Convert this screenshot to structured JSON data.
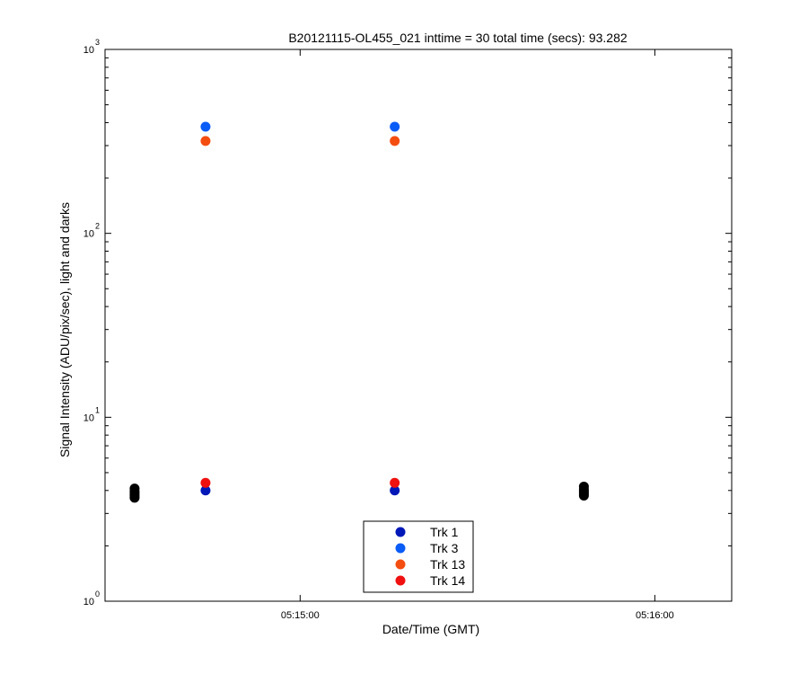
{
  "chart_data": {
    "type": "scatter",
    "title": "B20121115-OL455_021 inttime = 30 total time (secs): 93.282",
    "xlabel": "Date/Time (GMT)",
    "ylabel": "Signal Intensity (ADU/pix/sec), light and darks",
    "y_scale": "log",
    "ylim": [
      1,
      1000
    ],
    "xlim": [
      "05:14:27",
      "05:16:13"
    ],
    "x_tick_labels": [
      "05:15:00",
      "05:16:00"
    ],
    "y_tick_labels": [
      {
        "base": "10",
        "exp": "0"
      },
      {
        "base": "10",
        "exp": "1"
      },
      {
        "base": "10",
        "exp": "2"
      },
      {
        "base": "10",
        "exp": "3"
      }
    ],
    "legend_position": "bottom-center",
    "series": [
      {
        "name": "Trk 1",
        "color": "#0018b8",
        "points": [
          {
            "x": "05:14:44",
            "y": 4.0
          },
          {
            "x": "05:15:16",
            "y": 4.0
          }
        ]
      },
      {
        "name": "Trk 3",
        "color": "#0a5cf6",
        "points": [
          {
            "x": "05:14:44",
            "y": 380
          },
          {
            "x": "05:15:16",
            "y": 380
          }
        ]
      },
      {
        "name": "Trk 13",
        "color": "#f44d10",
        "points": [
          {
            "x": "05:14:44",
            "y": 318
          },
          {
            "x": "05:15:16",
            "y": 318
          }
        ]
      },
      {
        "name": "Trk 14",
        "color": "#f01010",
        "points": [
          {
            "x": "05:14:44",
            "y": 4.4
          },
          {
            "x": "05:15:16",
            "y": 4.4
          }
        ]
      }
    ],
    "dark_points": {
      "color": "#000000",
      "points": [
        {
          "x": "05:14:32",
          "y": 4.1
        },
        {
          "x": "05:14:32",
          "y": 3.95
        },
        {
          "x": "05:14:32",
          "y": 3.85
        },
        {
          "x": "05:14:32",
          "y": 3.75
        },
        {
          "x": "05:14:32",
          "y": 3.65
        },
        {
          "x": "05:15:48",
          "y": 4.2
        },
        {
          "x": "05:15:48",
          "y": 4.05
        },
        {
          "x": "05:15:48",
          "y": 3.95
        },
        {
          "x": "05:15:48",
          "y": 3.85
        },
        {
          "x": "05:15:48",
          "y": 3.75
        }
      ]
    }
  }
}
